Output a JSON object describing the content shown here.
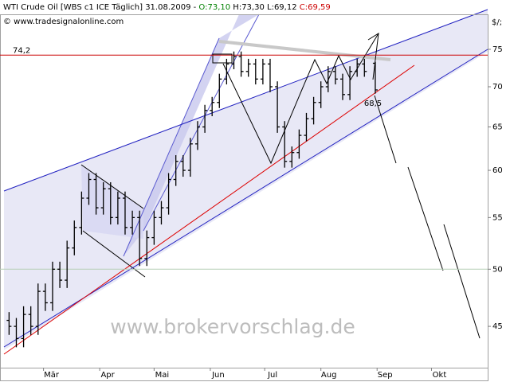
{
  "chart_data": {
    "type": "ohlc",
    "title_parts": [
      {
        "text": "WTI Crude Oil [WBS c1 ICE  Täglich] 31.08.2009 - ",
        "color": "#000000"
      },
      {
        "text": "O:73,10",
        "color": "#008000"
      },
      {
        "text": " H:73,30 L:69,12 ",
        "color": "#000000"
      },
      {
        "text": "C:69,59",
        "color": "#cc0000"
      }
    ],
    "subtitle": "© www.tradesignalonline.com",
    "y_unit": "$/;",
    "watermark": "www.brokervorschlag.de",
    "color": "#000000",
    "log_scale": true,
    "x": [
      "2009-02-10",
      "2009-02-14",
      "2009-02-18",
      "2009-02-22",
      "2009-02-26",
      "2009-03-02",
      "2009-03-06",
      "2009-03-10",
      "2009-03-14",
      "2009-03-18",
      "2009-03-22",
      "2009-03-26",
      "2009-03-30",
      "2009-04-03",
      "2009-04-07",
      "2009-04-11",
      "2009-04-15",
      "2009-04-19",
      "2009-04-23",
      "2009-04-27",
      "2009-05-01",
      "2009-05-05",
      "2009-05-09",
      "2009-05-13",
      "2009-05-17",
      "2009-05-21",
      "2009-05-25",
      "2009-05-29",
      "2009-06-02",
      "2009-06-06",
      "2009-06-10",
      "2009-06-14",
      "2009-06-18",
      "2009-06-22",
      "2009-06-26",
      "2009-06-30",
      "2009-07-04",
      "2009-07-08",
      "2009-07-12",
      "2009-07-16",
      "2009-07-20",
      "2009-07-24",
      "2009-07-28",
      "2009-08-01",
      "2009-08-05",
      "2009-08-09",
      "2009-08-13",
      "2009-08-17",
      "2009-08-21",
      "2009-08-25",
      "2009-08-31"
    ],
    "open": [
      45.5,
      45,
      44,
      46,
      45,
      48,
      47,
      50,
      49,
      52,
      54,
      57,
      59,
      56,
      58,
      55,
      57,
      54,
      55,
      51,
      53,
      55,
      56,
      59,
      61,
      60,
      63,
      65,
      67,
      68,
      71,
      73,
      74,
      72,
      73,
      71,
      73,
      70,
      65,
      61,
      62,
      64,
      66,
      68,
      70,
      72,
      71,
      69,
      72,
      73,
      73.1
    ],
    "high": [
      46.2,
      45.7,
      46.7,
      46.7,
      48.7,
      48.7,
      50.7,
      50.7,
      52.7,
      54.7,
      57.7,
      59.7,
      59.7,
      58.7,
      58.7,
      57.7,
      57.7,
      55.7,
      55.7,
      53.7,
      55.7,
      56.7,
      59.7,
      61.7,
      61.7,
      63.7,
      65.7,
      67.7,
      68.7,
      71.7,
      73.7,
      74.7,
      74.7,
      73.7,
      73.7,
      73.7,
      73.7,
      70.7,
      65.7,
      62.7,
      64.7,
      66.7,
      68.7,
      70.7,
      72.7,
      72.7,
      71.7,
      72.7,
      73.7,
      73.7,
      73.3
    ],
    "low": [
      44.3,
      43.3,
      43.3,
      44.3,
      44.3,
      46.3,
      46.3,
      48.3,
      48.3,
      51.3,
      53.3,
      56.3,
      55.3,
      55.3,
      54.3,
      54.3,
      53.3,
      53.3,
      50.3,
      50.3,
      52.3,
      54.3,
      55.3,
      58.3,
      59.3,
      59.3,
      62.3,
      64.3,
      66.3,
      67.3,
      70.3,
      72.3,
      71.3,
      71.3,
      70.3,
      70.3,
      69.3,
      64.3,
      60.3,
      60.3,
      61.3,
      63.3,
      65.3,
      67.3,
      69.3,
      70.3,
      68.3,
      68.3,
      71.3,
      71.3,
      69.12
    ],
    "close": [
      45,
      44,
      46,
      45,
      48,
      47,
      50,
      49,
      52,
      54,
      57,
      59,
      56,
      58,
      55,
      57,
      54,
      55,
      51,
      53,
      55,
      56,
      59,
      61,
      60,
      63,
      65,
      67,
      68,
      71,
      73,
      74,
      72,
      73,
      71,
      73,
      70,
      65,
      61,
      62,
      64,
      66,
      68,
      70,
      72,
      71,
      69,
      72,
      73,
      72,
      69.59
    ],
    "xlim": [
      "2009-02-05",
      "2009-11-01"
    ],
    "xticks": [
      {
        "value": "2009-03-01",
        "label": "Mär"
      },
      {
        "value": "2009-04-01",
        "label": "Apr"
      },
      {
        "value": "2009-05-01",
        "label": "Mai"
      },
      {
        "value": "2009-06-01",
        "label": "Jun"
      },
      {
        "value": "2009-07-01",
        "label": "Jul"
      },
      {
        "value": "2009-08-01",
        "label": "Aug"
      },
      {
        "value": "2009-09-01",
        "label": "Sep"
      },
      {
        "value": "2009-10-01",
        "label": "Okt"
      }
    ],
    "ylim": [
      41.7,
      80
    ],
    "yticks": [
      45,
      50,
      55,
      60,
      65,
      70,
      75
    ],
    "levels": [
      {
        "value": 74.2,
        "label": "74,2",
        "color": "#cc0000"
      },
      {
        "value": 50,
        "color": "#b8d0b8"
      }
    ],
    "annotations": [
      {
        "value": 68.5,
        "label": "68,5",
        "color": "#cc0000"
      }
    ]
  }
}
